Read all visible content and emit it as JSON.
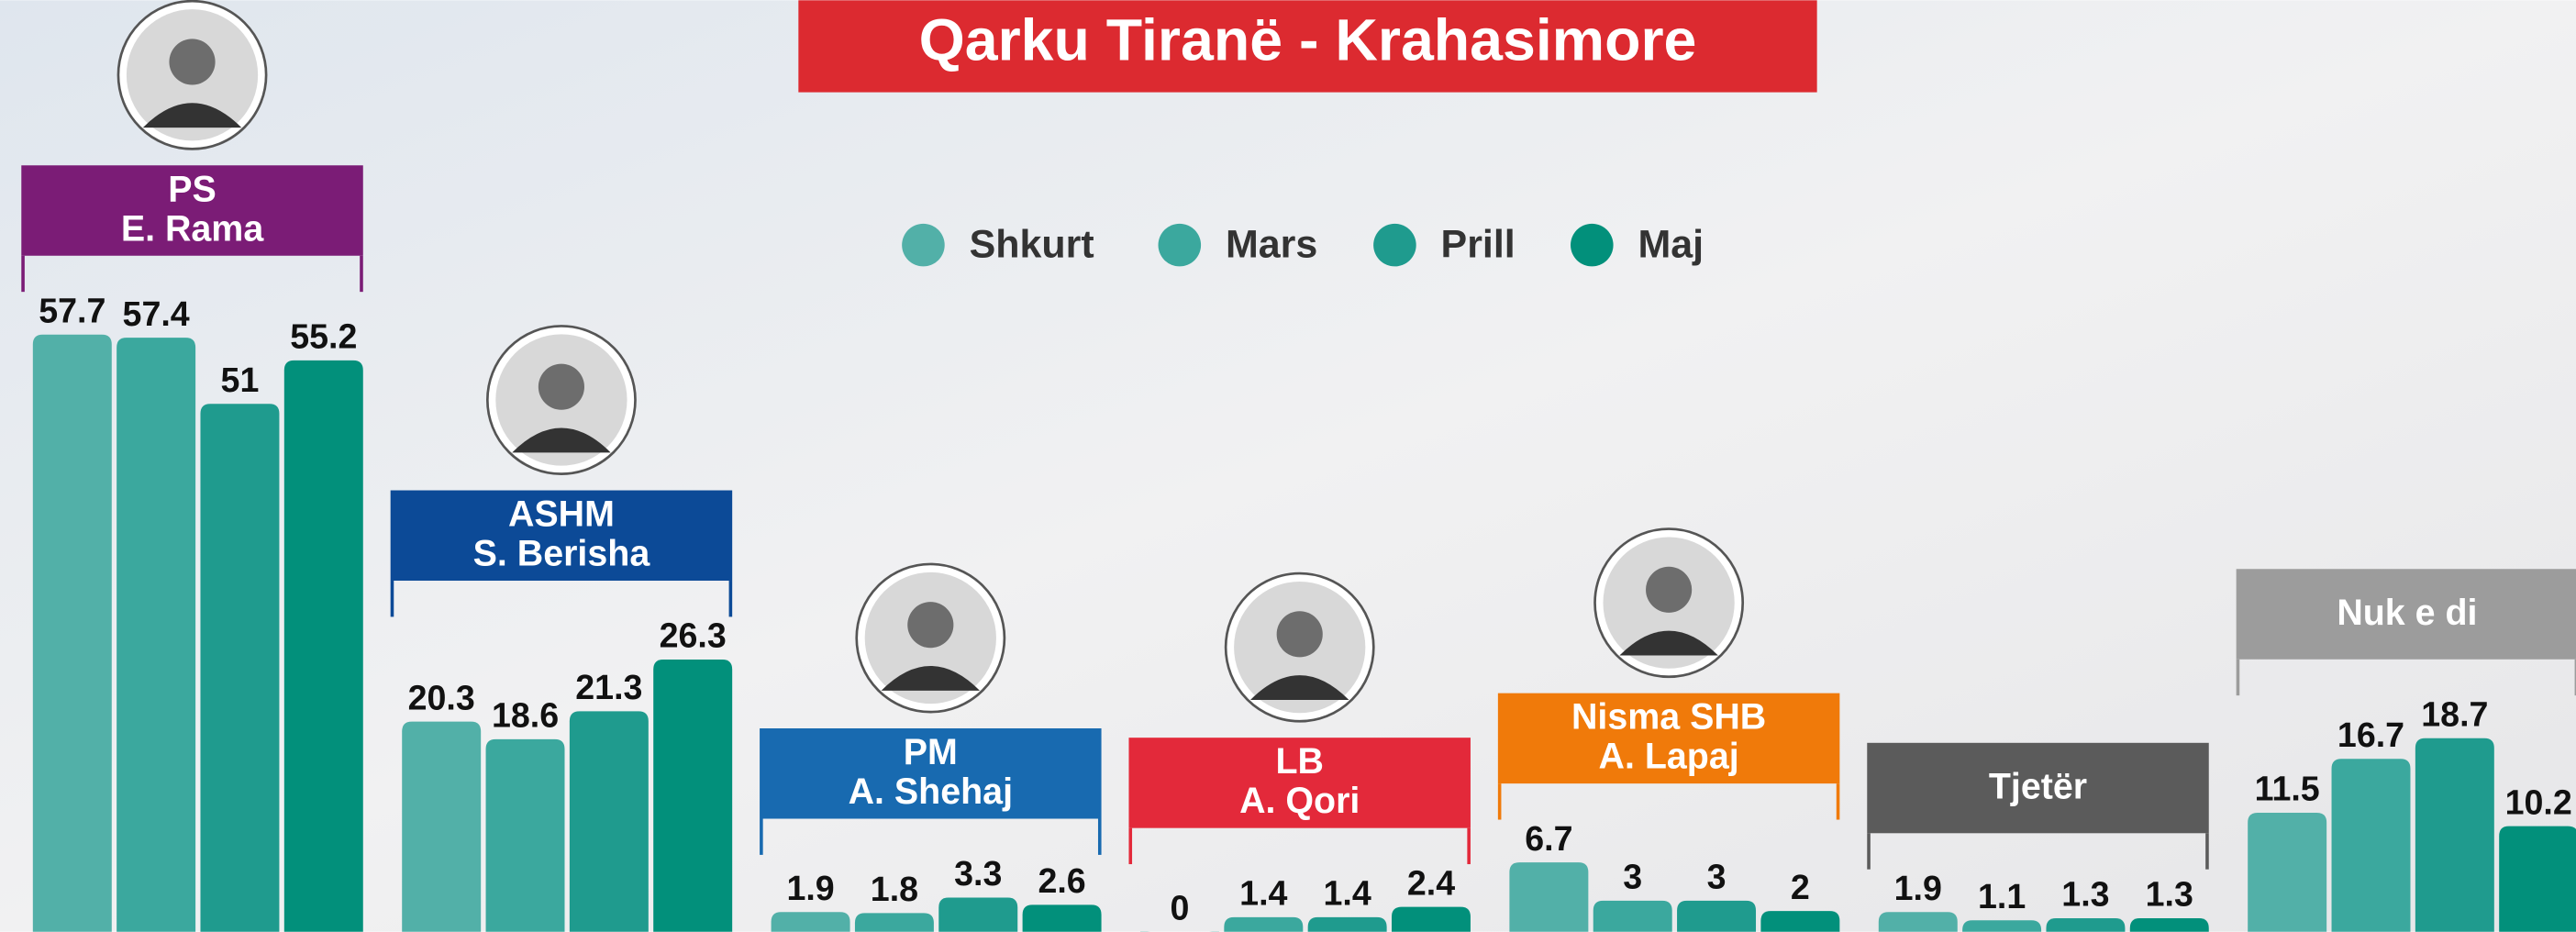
{
  "chart_data": {
    "type": "bar",
    "title": "Qarku Tiranë - Krahasimore",
    "categories": [
      "PS",
      "ASHM",
      "PM",
      "LB",
      "Nisma SHB",
      "Tjetër",
      "Nuk e di"
    ],
    "leaders": [
      "E. Rama",
      "S. Berisha",
      "A. Shehaj",
      "A. Qori",
      "A. Lapaj",
      null,
      null
    ],
    "category_colors": [
      "#7b1c76",
      "#0c4a97",
      "#186ab0",
      "#e3293a",
      "#f07a0a",
      "#5b5b5b",
      "#9c9c9c"
    ],
    "series": [
      {
        "name": "Shkurt",
        "color": "#52b0a8",
        "values": [
          57.7,
          20.3,
          1.9,
          0,
          6.7,
          1.9,
          11.5
        ]
      },
      {
        "name": "Mars",
        "color": "#3ba89e",
        "values": [
          57.4,
          18.6,
          1.8,
          1.4,
          3,
          1.1,
          16.7
        ]
      },
      {
        "name": "Prill",
        "color": "#1f9b8e",
        "values": [
          51,
          21.3,
          3.3,
          1.4,
          3,
          1.3,
          18.7
        ]
      },
      {
        "name": "Maj",
        "color": "#02907b",
        "values": [
          55.2,
          26.3,
          2.6,
          2.4,
          2,
          1.3,
          10.2
        ]
      }
    ],
    "ylim": [
      0,
      90
    ]
  }
}
